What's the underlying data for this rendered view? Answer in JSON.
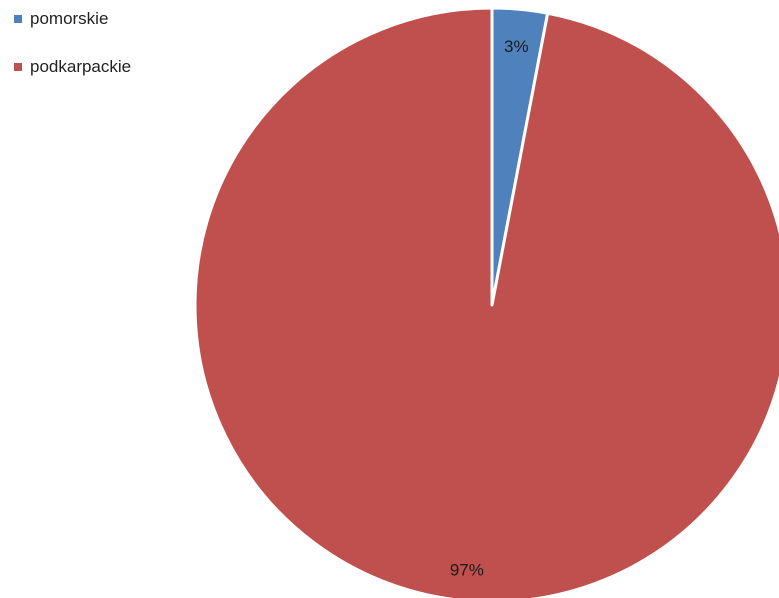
{
  "chart_data": {
    "type": "pie",
    "slices": [
      {
        "label": "pomorskie",
        "value": 3,
        "display": "3%",
        "color": "#4f81bd"
      },
      {
        "label": "podkarpackie",
        "value": 97,
        "display": "97%",
        "color": "#c0504d"
      }
    ],
    "legend_position": "top-left",
    "start_angle_deg": 0,
    "direction": "clockwise"
  }
}
